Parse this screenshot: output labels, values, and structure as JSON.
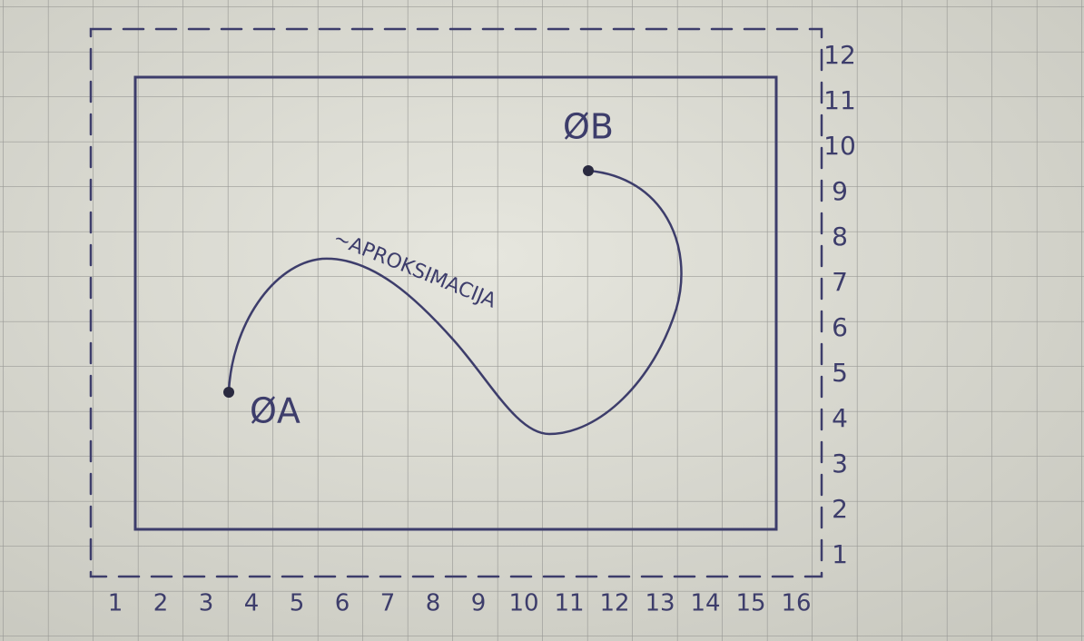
{
  "column_labels": [
    1,
    2,
    3,
    4,
    5,
    6,
    7,
    8,
    9,
    10,
    11,
    12,
    13,
    14,
    15,
    16
  ],
  "row_labels": [
    1,
    2,
    3,
    4,
    5,
    6,
    7,
    8,
    9,
    10,
    11,
    12
  ],
  "point_a": {
    "label": "ØA"
  },
  "point_b": {
    "label": "ØB"
  },
  "curve_label": "~APROKSIMACIJA"
}
